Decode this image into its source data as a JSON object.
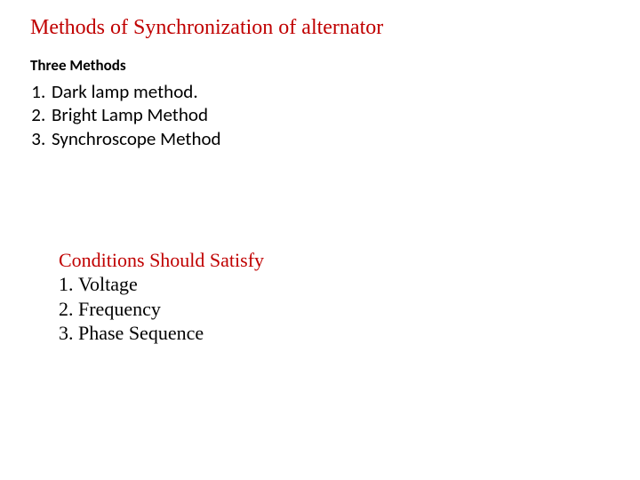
{
  "title": "Methods of Synchronization of alternator",
  "title_color": "#c00000",
  "subhead": "Three Methods",
  "methods": {
    "items": [
      "Dark lamp method.",
      "Bright Lamp Method",
      "Synchroscope Method"
    ]
  },
  "conditions": {
    "heading": "Conditions Should Satisfy",
    "heading_color": "#c00000",
    "items": [
      "Voltage",
      "Frequency",
      "Phase Sequence"
    ]
  },
  "typography": {
    "title_fontsize_pt": 18,
    "subhead_fontsize_pt": 13,
    "list_fontsize_pt": 16,
    "conditions_fontsize_pt": 16,
    "body_color": "#000000",
    "background": "#ffffff"
  }
}
